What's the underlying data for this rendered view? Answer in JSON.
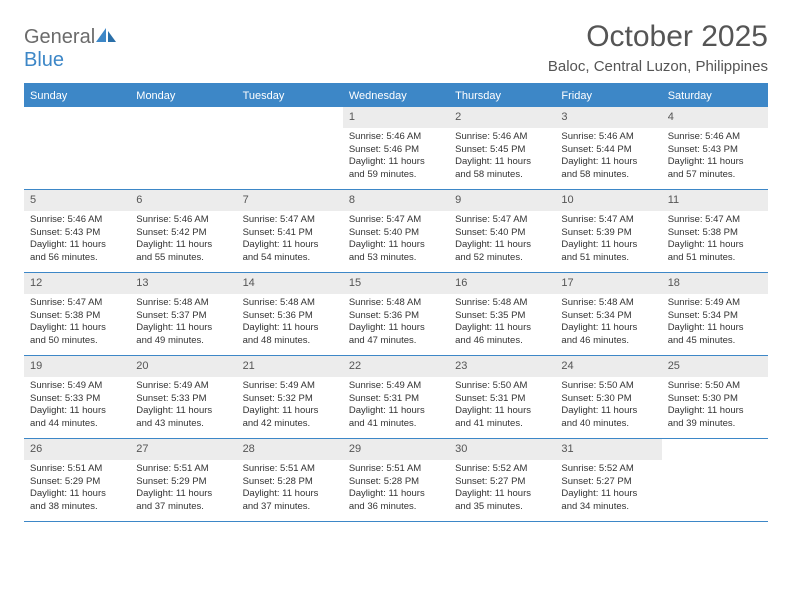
{
  "logo": {
    "general": "General",
    "blue": "Blue"
  },
  "title": "October 2025",
  "location": "Baloc, Central Luzon, Philippines",
  "colors": {
    "brand": "#3d87c7",
    "text": "#333333",
    "header_text": "#555555",
    "day_number_bg": "#ececec",
    "background": "#ffffff"
  },
  "weekdays": [
    "Sunday",
    "Monday",
    "Tuesday",
    "Wednesday",
    "Thursday",
    "Friday",
    "Saturday"
  ],
  "weeks": [
    [
      {
        "empty": true
      },
      {
        "empty": true
      },
      {
        "empty": true
      },
      {
        "day": "1",
        "sunrise": "Sunrise: 5:46 AM",
        "sunset": "Sunset: 5:46 PM",
        "daylight": "Daylight: 11 hours and 59 minutes."
      },
      {
        "day": "2",
        "sunrise": "Sunrise: 5:46 AM",
        "sunset": "Sunset: 5:45 PM",
        "daylight": "Daylight: 11 hours and 58 minutes."
      },
      {
        "day": "3",
        "sunrise": "Sunrise: 5:46 AM",
        "sunset": "Sunset: 5:44 PM",
        "daylight": "Daylight: 11 hours and 58 minutes."
      },
      {
        "day": "4",
        "sunrise": "Sunrise: 5:46 AM",
        "sunset": "Sunset: 5:43 PM",
        "daylight": "Daylight: 11 hours and 57 minutes."
      }
    ],
    [
      {
        "day": "5",
        "sunrise": "Sunrise: 5:46 AM",
        "sunset": "Sunset: 5:43 PM",
        "daylight": "Daylight: 11 hours and 56 minutes."
      },
      {
        "day": "6",
        "sunrise": "Sunrise: 5:46 AM",
        "sunset": "Sunset: 5:42 PM",
        "daylight": "Daylight: 11 hours and 55 minutes."
      },
      {
        "day": "7",
        "sunrise": "Sunrise: 5:47 AM",
        "sunset": "Sunset: 5:41 PM",
        "daylight": "Daylight: 11 hours and 54 minutes."
      },
      {
        "day": "8",
        "sunrise": "Sunrise: 5:47 AM",
        "sunset": "Sunset: 5:40 PM",
        "daylight": "Daylight: 11 hours and 53 minutes."
      },
      {
        "day": "9",
        "sunrise": "Sunrise: 5:47 AM",
        "sunset": "Sunset: 5:40 PM",
        "daylight": "Daylight: 11 hours and 52 minutes."
      },
      {
        "day": "10",
        "sunrise": "Sunrise: 5:47 AM",
        "sunset": "Sunset: 5:39 PM",
        "daylight": "Daylight: 11 hours and 51 minutes."
      },
      {
        "day": "11",
        "sunrise": "Sunrise: 5:47 AM",
        "sunset": "Sunset: 5:38 PM",
        "daylight": "Daylight: 11 hours and 51 minutes."
      }
    ],
    [
      {
        "day": "12",
        "sunrise": "Sunrise: 5:47 AM",
        "sunset": "Sunset: 5:38 PM",
        "daylight": "Daylight: 11 hours and 50 minutes."
      },
      {
        "day": "13",
        "sunrise": "Sunrise: 5:48 AM",
        "sunset": "Sunset: 5:37 PM",
        "daylight": "Daylight: 11 hours and 49 minutes."
      },
      {
        "day": "14",
        "sunrise": "Sunrise: 5:48 AM",
        "sunset": "Sunset: 5:36 PM",
        "daylight": "Daylight: 11 hours and 48 minutes."
      },
      {
        "day": "15",
        "sunrise": "Sunrise: 5:48 AM",
        "sunset": "Sunset: 5:36 PM",
        "daylight": "Daylight: 11 hours and 47 minutes."
      },
      {
        "day": "16",
        "sunrise": "Sunrise: 5:48 AM",
        "sunset": "Sunset: 5:35 PM",
        "daylight": "Daylight: 11 hours and 46 minutes."
      },
      {
        "day": "17",
        "sunrise": "Sunrise: 5:48 AM",
        "sunset": "Sunset: 5:34 PM",
        "daylight": "Daylight: 11 hours and 46 minutes."
      },
      {
        "day": "18",
        "sunrise": "Sunrise: 5:49 AM",
        "sunset": "Sunset: 5:34 PM",
        "daylight": "Daylight: 11 hours and 45 minutes."
      }
    ],
    [
      {
        "day": "19",
        "sunrise": "Sunrise: 5:49 AM",
        "sunset": "Sunset: 5:33 PM",
        "daylight": "Daylight: 11 hours and 44 minutes."
      },
      {
        "day": "20",
        "sunrise": "Sunrise: 5:49 AM",
        "sunset": "Sunset: 5:33 PM",
        "daylight": "Daylight: 11 hours and 43 minutes."
      },
      {
        "day": "21",
        "sunrise": "Sunrise: 5:49 AM",
        "sunset": "Sunset: 5:32 PM",
        "daylight": "Daylight: 11 hours and 42 minutes."
      },
      {
        "day": "22",
        "sunrise": "Sunrise: 5:49 AM",
        "sunset": "Sunset: 5:31 PM",
        "daylight": "Daylight: 11 hours and 41 minutes."
      },
      {
        "day": "23",
        "sunrise": "Sunrise: 5:50 AM",
        "sunset": "Sunset: 5:31 PM",
        "daylight": "Daylight: 11 hours and 41 minutes."
      },
      {
        "day": "24",
        "sunrise": "Sunrise: 5:50 AM",
        "sunset": "Sunset: 5:30 PM",
        "daylight": "Daylight: 11 hours and 40 minutes."
      },
      {
        "day": "25",
        "sunrise": "Sunrise: 5:50 AM",
        "sunset": "Sunset: 5:30 PM",
        "daylight": "Daylight: 11 hours and 39 minutes."
      }
    ],
    [
      {
        "day": "26",
        "sunrise": "Sunrise: 5:51 AM",
        "sunset": "Sunset: 5:29 PM",
        "daylight": "Daylight: 11 hours and 38 minutes."
      },
      {
        "day": "27",
        "sunrise": "Sunrise: 5:51 AM",
        "sunset": "Sunset: 5:29 PM",
        "daylight": "Daylight: 11 hours and 37 minutes."
      },
      {
        "day": "28",
        "sunrise": "Sunrise: 5:51 AM",
        "sunset": "Sunset: 5:28 PM",
        "daylight": "Daylight: 11 hours and 37 minutes."
      },
      {
        "day": "29",
        "sunrise": "Sunrise: 5:51 AM",
        "sunset": "Sunset: 5:28 PM",
        "daylight": "Daylight: 11 hours and 36 minutes."
      },
      {
        "day": "30",
        "sunrise": "Sunrise: 5:52 AM",
        "sunset": "Sunset: 5:27 PM",
        "daylight": "Daylight: 11 hours and 35 minutes."
      },
      {
        "day": "31",
        "sunrise": "Sunrise: 5:52 AM",
        "sunset": "Sunset: 5:27 PM",
        "daylight": "Daylight: 11 hours and 34 minutes."
      },
      {
        "empty": true
      }
    ]
  ]
}
